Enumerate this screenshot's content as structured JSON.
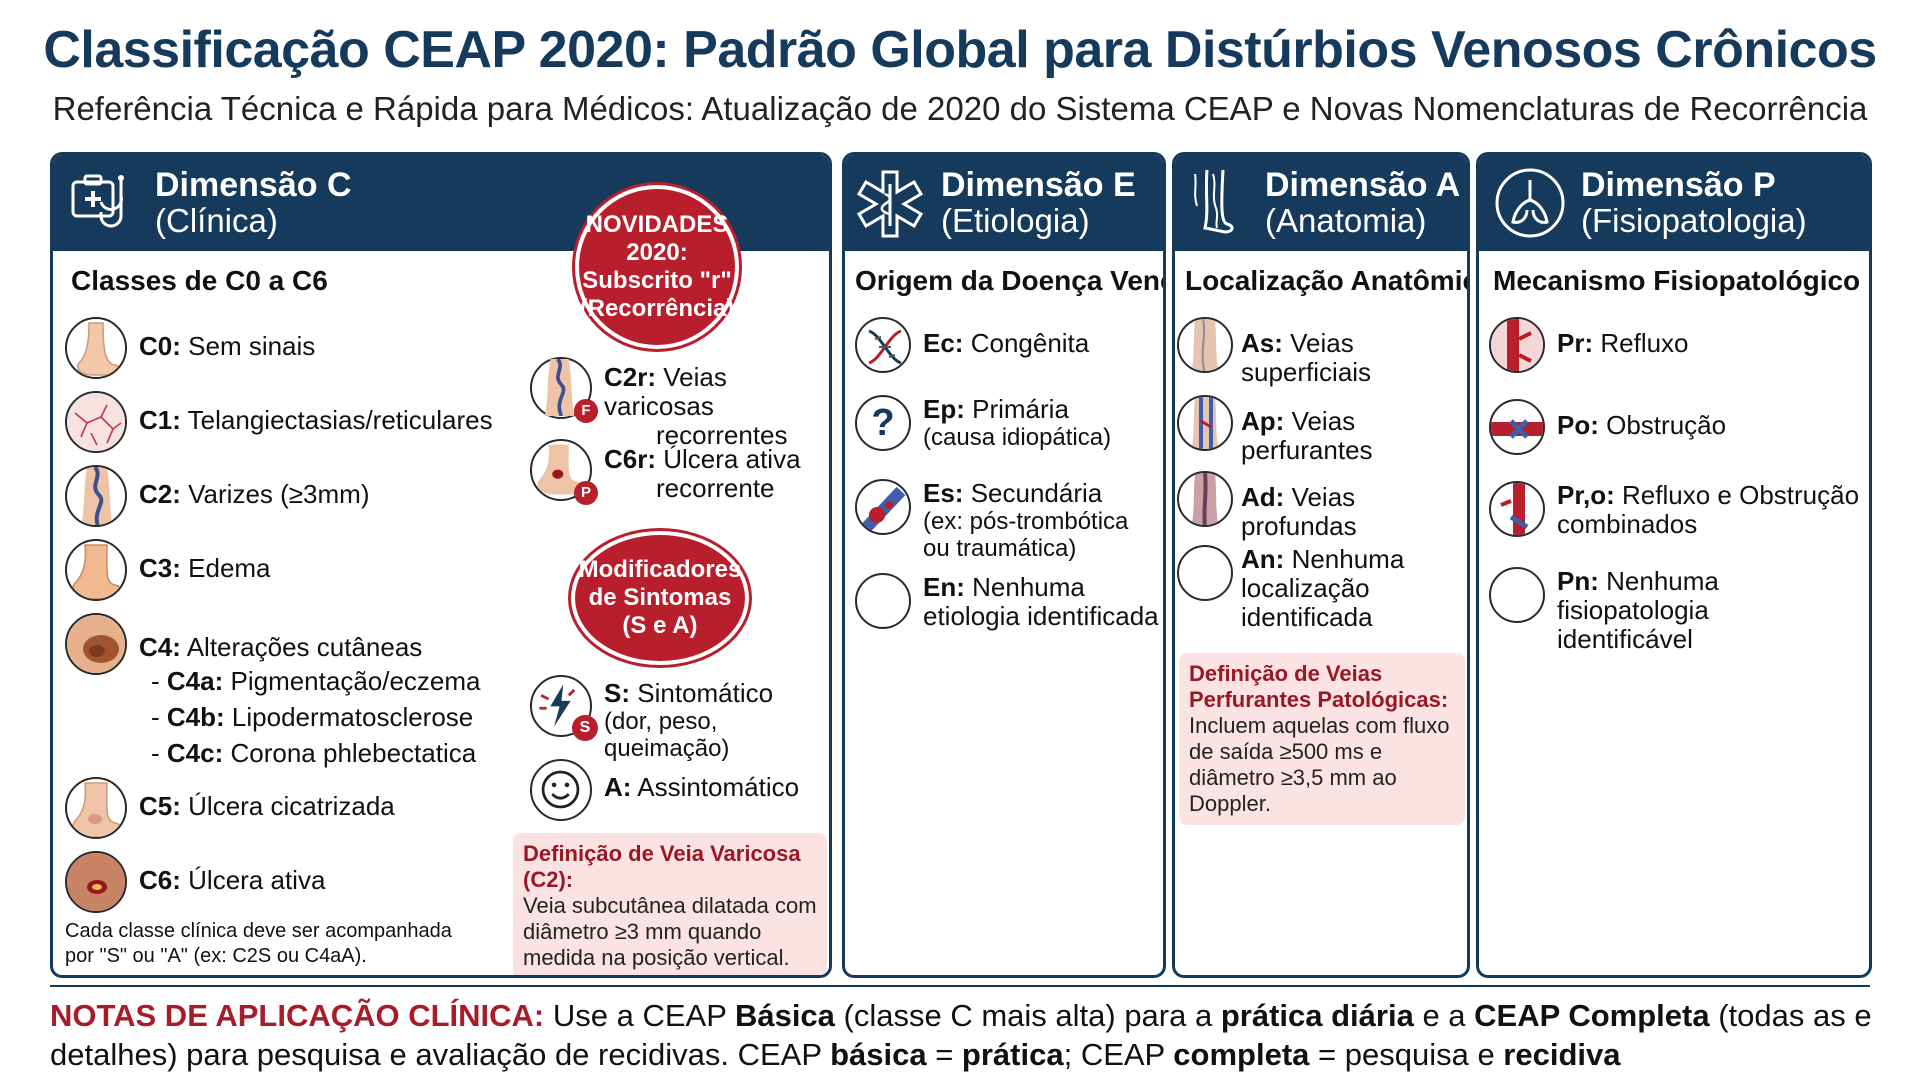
{
  "title": "Classificação CEAP 2020: Padrão Global para Distúrbios Venosos Crônicos",
  "subtitle": "Referência Técnica e Rápida para Médicos: Atualização de 2020 do Sistema CEAP e Novas Nomenclaturas de Recorrência",
  "colors": {
    "navy": "#163a5c",
    "red": "#b81e2b",
    "pink": "#fbe3e3"
  },
  "panel_c": {
    "icon": "medical-kit-stethoscope-icon",
    "title": "Dimensão C",
    "subtitle": "(Clínica)",
    "section": "Classes de C0 a C6",
    "items": [
      {
        "code": "C0:",
        "text": "Sem sinais"
      },
      {
        "code": "C1:",
        "text": "Telangiectasias/reticulares"
      },
      {
        "code": "C2:",
        "text": "Varizes (≥3mm)"
      },
      {
        "code": "C3:",
        "text": "Edema"
      },
      {
        "code": "C4:",
        "text": "Alterações cutâneas"
      },
      {
        "code": "C5:",
        "text": "Úlcera cicatrizada"
      },
      {
        "code": "C6:",
        "text": "Úlcera ativa"
      }
    ],
    "c4_sub": [
      {
        "dash": "- ",
        "code": "C4a:",
        "text": "Pigmentação/eczema"
      },
      {
        "dash": "- ",
        "code": "C4b:",
        "text": "Lipodermatosclerose"
      },
      {
        "dash": "- ",
        "code": "C4c:",
        "text": "Corona phlebectatica"
      }
    ],
    "note_line1": "Cada classe clínica deve ser acompanhada",
    "note_line2": "por \"S\" ou \"A\" (ex: C2S ou C4aA).",
    "badge_2020": [
      "NOVIDADES",
      "2020:",
      "Subscrito \"r\"",
      "(Recorrência)"
    ],
    "recurrence": [
      {
        "code": "C2r:",
        "line1": "Veias varicosas",
        "line2": "recorrentes",
        "tag": "F"
      },
      {
        "code": "C6r:",
        "line1": "Úlcera ativa",
        "line2": "recorrente",
        "tag": "P"
      }
    ],
    "badge_mod": [
      "Modificadores",
      "de Sintomas",
      "(S e A)"
    ],
    "symptoms": [
      {
        "code": "S:",
        "text": "Sintomático",
        "detail": "(dor, peso, queimação)",
        "tag": "S"
      },
      {
        "code": "A:",
        "text": "Assintomático"
      }
    ],
    "def_title": "Definição de Veia Varicosa (C2):",
    "def_lines": [
      "Veia subcutânea dilatada com",
      "diâmetro ≥3 mm quando",
      "medida na posição vertical."
    ]
  },
  "panel_e": {
    "icon": "star-of-life-icon",
    "title": "Dimensão E",
    "subtitle": "(Etiologia)",
    "section": "Origem da Doença Venosa",
    "items": [
      {
        "code": "Ec:",
        "text": "Congênita",
        "detail": ""
      },
      {
        "code": "Ep:",
        "text": "Primária",
        "detail": "(causa idiopática)"
      },
      {
        "code": "Es:",
        "text": "Secundária",
        "detail": "(ex: pós-trombótica",
        "detail2": "ou traumática)"
      },
      {
        "code": "En:",
        "text": "Nenhuma",
        "detail": "etiologia identificada"
      }
    ]
  },
  "panel_a": {
    "icon": "leg-veins-icon",
    "title": "Dimensão A",
    "subtitle": "(Anatomia)",
    "section": "Localização Anatômica",
    "items": [
      {
        "code": "As:",
        "text": "Veias superficiais"
      },
      {
        "code": "Ap:",
        "text": "Veias perfurantes"
      },
      {
        "code": "Ad:",
        "text": "Veias profundas"
      },
      {
        "code": "An:",
        "text": "Nenhuma",
        "line2": "localização",
        "line3": "identificada"
      }
    ],
    "def_title_1": "Definição de Veias",
    "def_title_2": "Perfurantes Patológicas:",
    "def_lines": [
      "Incluem aquelas com fluxo",
      "de saída ≥500 ms e",
      "diâmetro ≥3,5 mm ao",
      "Doppler."
    ]
  },
  "panel_p": {
    "icon": "lungs-icon",
    "title": "Dimensão P",
    "subtitle": "(Fisiopatologia)",
    "section": "Mecanismo Fisiopatológico",
    "items": [
      {
        "code": "Pr:",
        "text": "Refluxo"
      },
      {
        "code": "Po:",
        "text": "Obstrução"
      },
      {
        "code": "Pr,o:",
        "text": "Refluxo e Obstrução",
        "line2": "combinados"
      },
      {
        "code": "Pn:",
        "text": "Nenhuma fisiopatologia",
        "line2": "identificável"
      }
    ]
  },
  "notes": {
    "label": "NOTAS DE APLICAÇÃO CLÍNICA:",
    "t1": " Use a CEAP ",
    "b1": "Básica",
    "t2": " (classe C mais alta) para a ",
    "b2": "prática diária",
    "t3": " e a ",
    "b3": "CEAP Completa",
    "t4": " (todas as e detalhes) para pesquisa e avaliação de recidivas. CEAP ",
    "b4": "básica",
    "t5": " = ",
    "b5": "prática",
    "t6": "; CEAP ",
    "b6": "completa",
    "t7": " = pesquisa e ",
    "b7": "recidiva"
  }
}
